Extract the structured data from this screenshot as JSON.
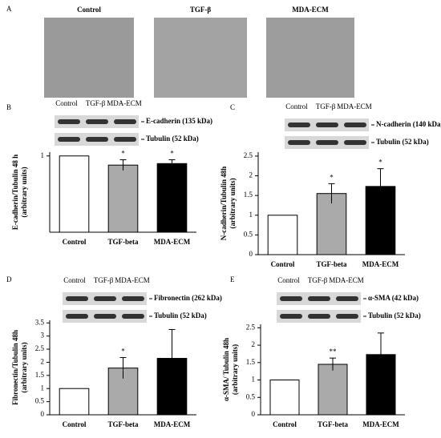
{
  "panel_a": {
    "letter": "A",
    "images": [
      "Control",
      "TGF-β",
      "MDA-ECM"
    ]
  },
  "chart_data": [
    {
      "type": "bar",
      "panel": "B",
      "blot": {
        "lanes": [
          "Control",
          "TGF-β",
          "MDA-ECM"
        ],
        "bands": [
          "E-cadherin (135 kDa)",
          "Tubulin (52 kDa)"
        ]
      },
      "y_label": [
        "E-cadherin/Tubulin 48 h",
        "(arbitrary units)"
      ],
      "categories": [
        "Control",
        "TGF-beta",
        "MDA-ECM"
      ],
      "values": [
        1,
        0.88,
        0.9
      ],
      "errors": [
        null,
        0.07,
        0.05
      ],
      "colors": [
        "#ffffff",
        "#aaaaaa",
        "#000000"
      ],
      "annotations": [
        {
          "index": 1,
          "text": "*"
        },
        {
          "index": 2,
          "text": "*"
        }
      ],
      "ylim": [
        0,
        1.05
      ],
      "yticks": [
        1
      ]
    },
    {
      "type": "bar",
      "panel": "C",
      "blot": {
        "lanes": [
          "Control",
          "TGF-β",
          "MDA-ECM"
        ],
        "bands": [
          "N-cadherin (140 kDa)",
          "Tubulin (52 kDa)"
        ]
      },
      "y_label": [
        "N-cadherin/Tubulin 48h",
        "(arbitrary units)"
      ],
      "categories": [
        "Control",
        "TGF-beta",
        "MDA-ECM"
      ],
      "values": [
        1,
        1.55,
        1.73
      ],
      "errors": [
        null,
        0.25,
        0.45
      ],
      "colors": [
        "#ffffff",
        "#aaaaaa",
        "#000000"
      ],
      "annotations": [
        {
          "index": 1,
          "text": "*"
        },
        {
          "index": 2,
          "text": "*"
        }
      ],
      "ylim": [
        0,
        2.6
      ],
      "yticks": [
        0,
        0.5,
        1,
        1.5,
        2,
        2.5
      ]
    },
    {
      "type": "bar",
      "panel": "D",
      "blot": {
        "lanes": [
          "Control",
          "TGF-β",
          "MDA-ECM"
        ],
        "bands": [
          "Fibronectin (262 kDa)",
          "Tubulin (52 kDa)"
        ]
      },
      "y_label": [
        "Fibronectin/Tubulin 48h",
        "(arbitrary units)"
      ],
      "categories": [
        "Control",
        "TGF-beta",
        "MDA-ECM"
      ],
      "values": [
        1,
        1.78,
        2.15
      ],
      "errors": [
        null,
        0.4,
        1.1
      ],
      "colors": [
        "#ffffff",
        "#aaaaaa",
        "#000000"
      ],
      "annotations": [
        {
          "index": 1,
          "text": "*"
        }
      ],
      "ylim": [
        0,
        3.6
      ],
      "yticks": [
        0,
        0.5,
        1,
        1.5,
        2,
        2.5,
        3,
        3.5
      ]
    },
    {
      "type": "bar",
      "panel": "E",
      "blot": {
        "lanes": [
          "Control",
          "TGF-β",
          "MDA-ECM"
        ],
        "bands": [
          "α-SMA (42 kDa)",
          "Tubulin (52 kDa)"
        ]
      },
      "y_label": [
        "α-SMA/ Tubulin 48h",
        "(arbitrary units)"
      ],
      "categories": [
        "Control",
        "TGF-beta",
        "MDA-ECM"
      ],
      "values": [
        1,
        1.45,
        1.73
      ],
      "errors": [
        null,
        0.18,
        0.62
      ],
      "colors": [
        "#ffffff",
        "#aaaaaa",
        "#000000"
      ],
      "annotations": [
        {
          "index": 1,
          "text": "**"
        }
      ],
      "ylim": [
        0,
        2.6
      ],
      "yticks": [
        0,
        0.5,
        1,
        1.5,
        2,
        2.5
      ]
    }
  ]
}
